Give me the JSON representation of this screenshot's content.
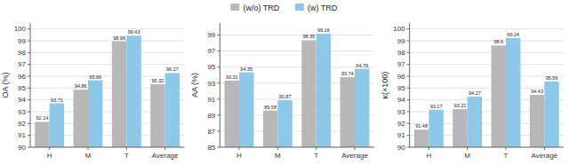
{
  "chart_data": [
    {
      "type": "bar",
      "y_label": "OA (%) ",
      "categories": [
        "H",
        "M",
        "T",
        "Average"
      ],
      "series": [
        {
          "name": "(w/o) TRD",
          "color": "#b8b8b8",
          "values": [
            92.14,
            94.86,
            98.96,
            95.32
          ]
        },
        {
          "name": "(w) TRD",
          "color": "#8ec8e8",
          "values": [
            93.71,
            95.66,
            99.43,
            96.27
          ]
        }
      ],
      "ylim": [
        90,
        100.5
      ],
      "yticks": [
        90,
        91,
        92,
        93,
        94,
        95,
        96,
        97,
        98,
        99,
        100
      ],
      "grid": true,
      "data_labels": true,
      "legend": "top"
    },
    {
      "type": "bar",
      "y_label": "AA (%) ",
      "categories": [
        "H",
        "M",
        "T",
        "Average"
      ],
      "series": [
        {
          "name": "(w/o) TRD",
          "color": "#b8b8b8",
          "values": [
            93.31,
            89.58,
            98.35,
            93.74
          ]
        },
        {
          "name": "(w) TRD",
          "color": "#8ec8e8",
          "values": [
            94.35,
            90.87,
            99.16,
            94.79
          ]
        }
      ],
      "ylim": [
        85,
        100.5
      ],
      "yticks": [
        85,
        87,
        89,
        91,
        93,
        95,
        97,
        99
      ],
      "grid": true,
      "data_labels": true,
      "legend": "top"
    },
    {
      "type": "bar",
      "y_label": "κ(×100) ",
      "categories": [
        "H",
        "M",
        "T",
        "Average"
      ],
      "series": [
        {
          "name": "(w/o) TRD",
          "color": "#b8b8b8",
          "values": [
            91.48,
            93.22,
            98.6,
            94.43
          ]
        },
        {
          "name": "(w) TRD",
          "color": "#8ec8e8",
          "values": [
            93.17,
            94.27,
            99.24,
            95.56
          ]
        }
      ],
      "ylim": [
        90,
        100.5
      ],
      "yticks": [
        90,
        91,
        92,
        93,
        94,
        95,
        96,
        97,
        98,
        99,
        100
      ],
      "grid": true,
      "data_labels": true,
      "legend": "top"
    }
  ]
}
